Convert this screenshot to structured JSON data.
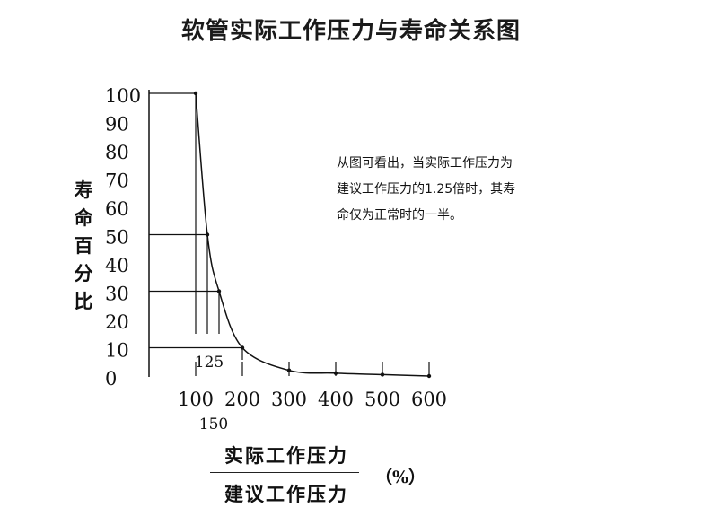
{
  "title": "软管实际工作压力与寿命关系图",
  "note_lines": [
    "从图可看出，当实际工作压力为",
    "建议工作压力的1.25倍时，其寿",
    "命仅为正常时的一半。"
  ],
  "y_axis_chars": [
    "寿",
    "命",
    "百",
    "分",
    "比"
  ],
  "x_axis_label": {
    "numerator": "实际工作压力",
    "denominator": "建议工作压力",
    "unit": "（%）"
  },
  "chart_data": {
    "type": "line",
    "x": [
      100,
      125,
      150,
      200,
      300,
      400,
      500,
      600
    ],
    "y": [
      100,
      50,
      30,
      10,
      2,
      1,
      0.5,
      0
    ],
    "xlim": [
      0,
      600
    ],
    "ylim": [
      0,
      100
    ],
    "y_ticks": [
      0,
      10,
      20,
      30,
      40,
      50,
      60,
      70,
      80,
      90,
      100
    ],
    "x_ticks": [
      100,
      200,
      300,
      400,
      500,
      600
    ],
    "x_tick_labels": [
      "100",
      "200",
      "300",
      "400",
      "500",
      "600"
    ],
    "extra_x_labels": [
      {
        "value": 125,
        "label": "125"
      },
      {
        "value": 150,
        "label": "150"
      }
    ],
    "reference_lines": [
      {
        "x": 100,
        "y": 100
      },
      {
        "x": 125,
        "y": 50
      },
      {
        "x": 150,
        "y": 30
      },
      {
        "x": 200,
        "y": 10
      }
    ],
    "grid": false,
    "line_color": "#111111"
  }
}
